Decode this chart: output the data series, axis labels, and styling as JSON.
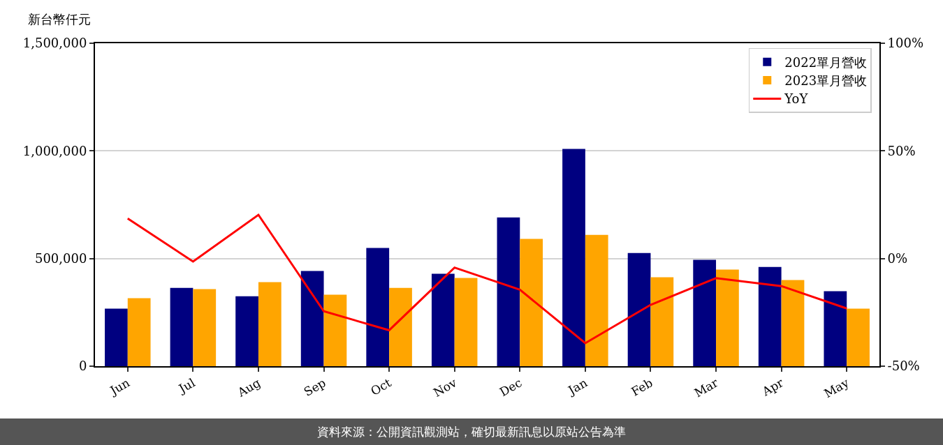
{
  "chart_data": {
    "type": "bar",
    "ylabel": "新台幣仟元",
    "categories": [
      "Jun",
      "Jul",
      "Aug",
      "Sep",
      "Oct",
      "Nov",
      "Dec",
      "Jan",
      "Feb",
      "Mar",
      "Apr",
      "May"
    ],
    "series": [
      {
        "name": "2022單月營收",
        "color": "#000080",
        "values": [
          267000,
          364000,
          325000,
          442000,
          549000,
          429000,
          691000,
          1009000,
          526000,
          494000,
          461000,
          348000
        ]
      },
      {
        "name": "2023單月營收",
        "color": "#ffa500",
        "values": [
          316000,
          358000,
          390000,
          332000,
          364000,
          410000,
          591000,
          610000,
          413000,
          449000,
          400000,
          267000
        ]
      },
      {
        "name": "YoY",
        "type": "line",
        "axis": "y2",
        "color": "#ff0000",
        "values": [
          18.6,
          -1.4,
          20.3,
          -24.5,
          -33.3,
          -4.2,
          -14.5,
          -39.3,
          -21.5,
          -9.1,
          -12.8,
          -23.2
        ]
      }
    ],
    "ylim": [
      0,
      1500000
    ],
    "yticks": [
      0,
      {
        "value": 500000,
        "label": "500,000"
      },
      {
        "value": 1000000,
        "label": "1,000,000"
      },
      {
        "value": 1500000,
        "label": "1,500,000"
      }
    ],
    "y2lim": [
      -50,
      100
    ],
    "y2ticks": [
      {
        "value": -50,
        "label": "-50%"
      },
      {
        "value": 0,
        "label": "0%"
      },
      {
        "value": 50,
        "label": "50%"
      },
      {
        "value": 100,
        "label": "100%"
      }
    ],
    "grid": "y",
    "legend": "top right",
    "line_style": "solid",
    "annotations": [
      "資料來源：公開資訊觀測站，確切最新訊息以原站公告為準"
    ]
  }
}
